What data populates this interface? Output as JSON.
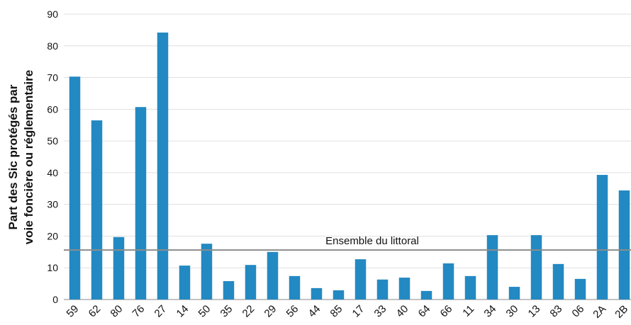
{
  "chart_data": {
    "type": "bar",
    "ylabel": [
      "Part des Sic protégés par",
      "voie foncière ou réglementaire"
    ],
    "categories": [
      "59",
      "62",
      "80",
      "76",
      "27",
      "14",
      "50",
      "35",
      "22",
      "29",
      "56",
      "44",
      "85",
      "17",
      "33",
      "40",
      "64",
      "66",
      "11",
      "34",
      "30",
      "13",
      "83",
      "06",
      "2A",
      "2B"
    ],
    "values": [
      70.3,
      56.5,
      19.7,
      60.7,
      84.2,
      10.7,
      17.6,
      5.8,
      10.9,
      15.0,
      7.4,
      3.6,
      2.9,
      12.7,
      6.3,
      6.9,
      2.7,
      11.4,
      7.4,
      20.3,
      4.0,
      20.3,
      11.2,
      6.5,
      39.3,
      34.4
    ],
    "color": "#2389c2",
    "ylim": [
      0,
      90
    ],
    "yticks": [
      0,
      10,
      20,
      30,
      40,
      50,
      60,
      70,
      80,
      90
    ],
    "grid": true,
    "reference_line": {
      "value": 15.6,
      "label": "Ensemble du littoral",
      "color": "#8c8c8c"
    }
  }
}
